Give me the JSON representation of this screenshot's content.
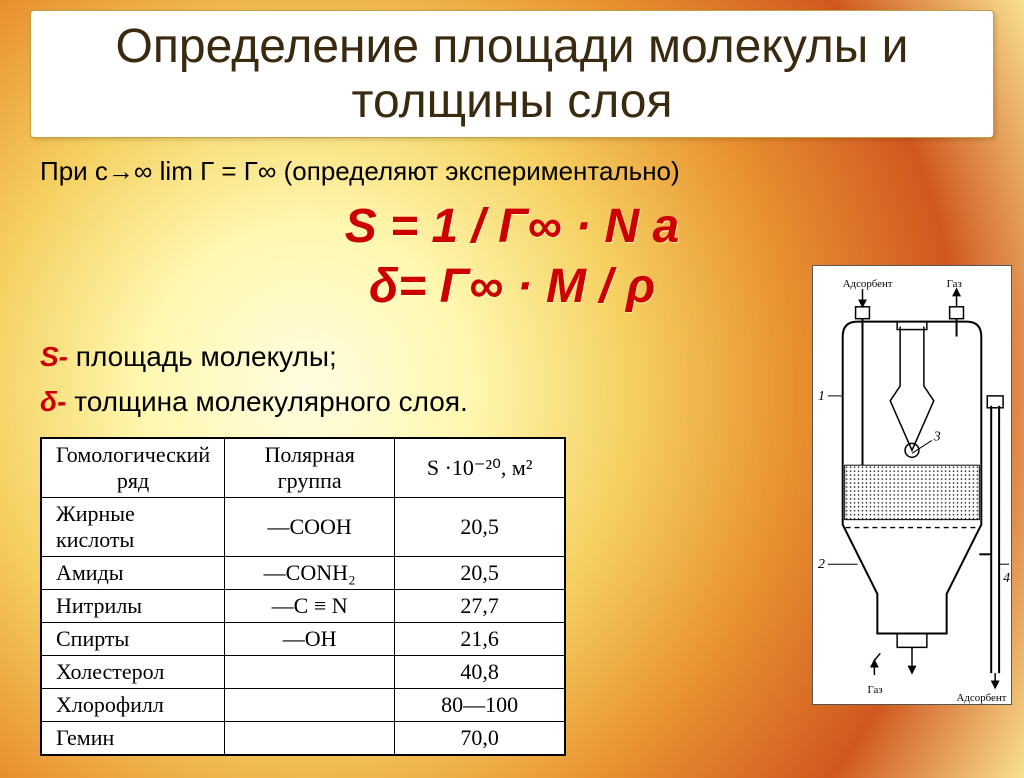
{
  "title": "Определение площади молекулы и толщины слоя",
  "limit_line": "При с→∞ lim Г = Г∞ (определяют экспериментально)",
  "formula_line1": "S = 1 /  Г∞ · N а",
  "formula_line2": "δ= Г∞ · M / ρ",
  "def_S_sym": "S-",
  "def_S_text": " площадь молекулы;",
  "def_d_sym": "δ-",
  "def_d_text": " толщина молекулярного слоя.",
  "table": {
    "headers": [
      "Гомологический ряд",
      "Полярная группа",
      "S ·10⁻²⁰,  м²"
    ],
    "rows": [
      [
        "Жирные кислоты",
        "—COOH",
        "20,5"
      ],
      [
        "Амиды",
        "—CONH₂",
        "20,5"
      ],
      [
        "Нитрилы",
        "—C ≡ N",
        "27,7"
      ],
      [
        "Спирты",
        "—OH",
        "21,6"
      ],
      [
        "Холестерол",
        "",
        "40,8"
      ],
      [
        "Хлорофилл",
        "",
        "80—100"
      ],
      [
        "Гемин",
        "",
        "70,0"
      ]
    ],
    "col_widths": [
      "170px",
      "170px",
      "170px"
    ]
  },
  "apparatus": {
    "top_left_label": "Адсорбент",
    "top_right_label": "Газ",
    "bottom_left_label": "Газ",
    "bottom_right_label": "Адсорбент",
    "num1": "1",
    "num2": "2",
    "num3": "3",
    "num4": "4"
  },
  "colors": {
    "title_bg": "#ffffff",
    "title_text": "#3a2a10",
    "formula": "#cc0000",
    "body_text": "#000000",
    "table_border": "#000000"
  },
  "fonts": {
    "title_size": 48,
    "formula_size": 48,
    "body_size": 28,
    "table_size": 22
  }
}
